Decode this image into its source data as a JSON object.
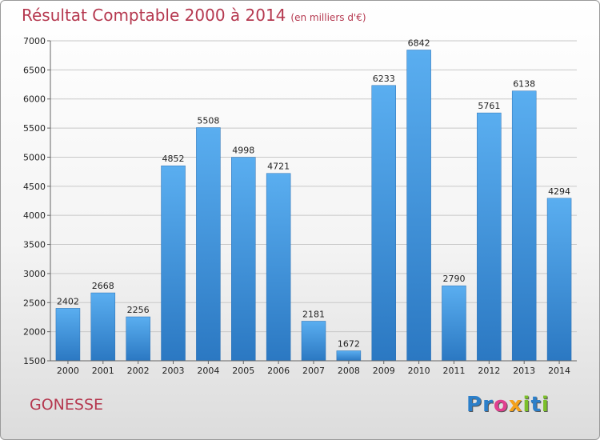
{
  "header": {
    "title": "Résultat Comptable 2000 à 2014",
    "unit": "(en milliers d'€)"
  },
  "footer": {
    "city": "GONESSE",
    "logo_letters": [
      {
        "ch": "P",
        "color": "#2c7fc9"
      },
      {
        "ch": "r",
        "color": "#2c7fc9"
      },
      {
        "ch": "o",
        "color": "#e0408f"
      },
      {
        "ch": "x",
        "color": "#f4a11b"
      },
      {
        "ch": "i",
        "color": "#7cbf2a"
      },
      {
        "ch": "t",
        "color": "#2c7fc9"
      },
      {
        "ch": "i",
        "color": "#7cbf2a"
      }
    ]
  },
  "chart_data": {
    "type": "bar",
    "title": "Résultat Comptable 2000 à 2014",
    "subtitle": "(en milliers d'€)",
    "categories": [
      "2000",
      "2001",
      "2002",
      "2003",
      "2004",
      "2005",
      "2006",
      "2007",
      "2008",
      "2009",
      "2010",
      "2011",
      "2012",
      "2013",
      "2014"
    ],
    "values": [
      2402,
      2668,
      2256,
      4852,
      5508,
      4998,
      4721,
      2181,
      1672,
      6233,
      6842,
      2790,
      5761,
      6138,
      4294
    ],
    "ylim": [
      1500,
      7000
    ],
    "yticks": [
      1500,
      2000,
      2500,
      3000,
      3500,
      4000,
      4500,
      5000,
      5500,
      6000,
      6500,
      7000
    ],
    "grid": true,
    "bar_color": "#3d8fd6",
    "grid_color": "#c8c8c8"
  }
}
